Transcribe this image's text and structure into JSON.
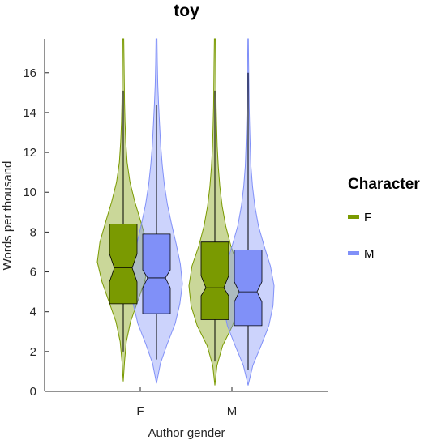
{
  "chart_data": {
    "type": "violin",
    "title": "toy",
    "xlabel": "Author gender",
    "ylabel": "Words per thousand",
    "categories": [
      "F",
      "M"
    ],
    "ylim": [
      0,
      17.7
    ],
    "yticks": [
      0,
      2,
      4,
      6,
      8,
      10,
      12,
      14,
      16
    ],
    "legend": {
      "title": "Character",
      "position": "right"
    },
    "series": [
      {
        "name": "F",
        "color": "#7a9a01",
        "groups": [
          {
            "category": "F",
            "q1": 4.4,
            "median": 6.2,
            "q3": 8.4,
            "notch_low": 5.5,
            "notch_high": 6.9,
            "whisker_low": 2.0,
            "whisker_high": 15.1,
            "min": 0.5,
            "max": 17.7,
            "density": [
              [
                0.5,
                0.0
              ],
              [
                1.5,
                0.05
              ],
              [
                2.5,
                0.12
              ],
              [
                3.5,
                0.28
              ],
              [
                4.5,
                0.55
              ],
              [
                5.5,
                0.82
              ],
              [
                6.5,
                1.0
              ],
              [
                7.5,
                0.9
              ],
              [
                8.5,
                0.68
              ],
              [
                9.5,
                0.45
              ],
              [
                10.5,
                0.26
              ],
              [
                11.5,
                0.15
              ],
              [
                12.5,
                0.1
              ],
              [
                13.5,
                0.07
              ],
              [
                14.5,
                0.05
              ],
              [
                15.5,
                0.04
              ],
              [
                16.5,
                0.03
              ],
              [
                17.7,
                0.02
              ]
            ]
          },
          {
            "category": "M",
            "q1": 3.6,
            "median": 5.2,
            "q3": 7.5,
            "notch_low": 4.8,
            "notch_high": 5.8,
            "whisker_low": 1.5,
            "whisker_high": 15.1,
            "min": 0.3,
            "max": 17.7,
            "density": [
              [
                0.3,
                0.0
              ],
              [
                1.3,
                0.08
              ],
              [
                2.3,
                0.3
              ],
              [
                3.3,
                0.68
              ],
              [
                4.3,
                0.92
              ],
              [
                5.3,
                1.0
              ],
              [
                6.3,
                0.88
              ],
              [
                7.3,
                0.62
              ],
              [
                8.3,
                0.42
              ],
              [
                9.3,
                0.28
              ],
              [
                10.3,
                0.19
              ],
              [
                11.3,
                0.13
              ],
              [
                12.3,
                0.09
              ],
              [
                13.3,
                0.07
              ],
              [
                14.3,
                0.05
              ],
              [
                15.3,
                0.04
              ],
              [
                16.5,
                0.03
              ],
              [
                17.7,
                0.02
              ]
            ]
          }
        ]
      },
      {
        "name": "M",
        "color": "#8090f8",
        "groups": [
          {
            "category": "F",
            "q1": 3.9,
            "median": 5.7,
            "q3": 7.9,
            "notch_low": 5.2,
            "notch_high": 6.1,
            "whisker_low": 1.6,
            "whisker_high": 14.4,
            "min": 0.4,
            "max": 17.7,
            "density": [
              [
                0.4,
                0.0
              ],
              [
                1.4,
                0.15
              ],
              [
                2.4,
                0.42
              ],
              [
                3.4,
                0.72
              ],
              [
                4.4,
                0.9
              ],
              [
                5.4,
                1.0
              ],
              [
                6.4,
                0.92
              ],
              [
                7.4,
                0.76
              ],
              [
                8.4,
                0.58
              ],
              [
                9.4,
                0.42
              ],
              [
                10.4,
                0.3
              ],
              [
                11.4,
                0.22
              ],
              [
                12.4,
                0.16
              ],
              [
                13.4,
                0.12
              ],
              [
                14.4,
                0.08
              ],
              [
                15.4,
                0.05
              ],
              [
                16.5,
                0.03
              ],
              [
                17.7,
                0.02
              ]
            ]
          },
          {
            "category": "M",
            "q1": 3.3,
            "median": 5.0,
            "q3": 7.1,
            "notch_low": 4.5,
            "notch_high": 5.5,
            "whisker_low": 1.1,
            "whisker_high": 16.0,
            "min": 0.3,
            "max": 17.7,
            "density": [
              [
                0.3,
                0.0
              ],
              [
                1.3,
                0.18
              ],
              [
                2.3,
                0.5
              ],
              [
                3.3,
                0.8
              ],
              [
                4.3,
                0.96
              ],
              [
                5.3,
                1.0
              ],
              [
                6.3,
                0.86
              ],
              [
                7.3,
                0.62
              ],
              [
                8.3,
                0.4
              ],
              [
                9.3,
                0.26
              ],
              [
                10.3,
                0.17
              ],
              [
                11.3,
                0.11
              ],
              [
                12.3,
                0.08
              ],
              [
                13.3,
                0.06
              ],
              [
                14.3,
                0.04
              ],
              [
                15.3,
                0.03
              ],
              [
                16.5,
                0.02
              ],
              [
                17.7,
                0.01
              ]
            ]
          }
        ]
      }
    ]
  }
}
